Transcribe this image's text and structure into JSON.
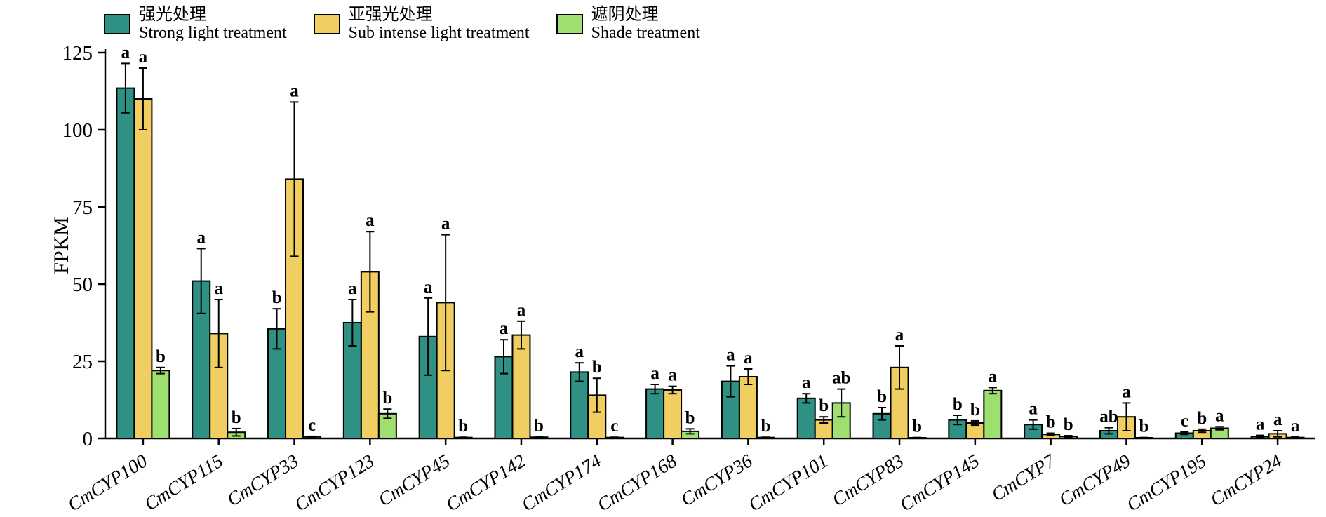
{
  "legend": {
    "items": [
      {
        "label_zh": "强光处理",
        "label_en": "Strong light treatment",
        "color": "#2F9184"
      },
      {
        "label_zh": "亚强光处理",
        "label_en": "Sub intense light treatment",
        "color": "#F0CE62"
      },
      {
        "label_zh": "遮阴处理",
        "label_en": "Shade treatment",
        "color": "#9FDF6F"
      }
    ]
  },
  "chart_data": {
    "type": "bar",
    "title": "",
    "xlabel": "",
    "ylabel": "FPKM",
    "ylim": [
      0,
      125
    ],
    "yticks": [
      0,
      25,
      50,
      75,
      100,
      125
    ],
    "grid": false,
    "legend_position": "top",
    "categories": [
      "CmCYP100",
      "CmCYP115",
      "CmCYP33",
      "CmCYP123",
      "CmCYP45",
      "CmCYP142",
      "CmCYP174",
      "CmCYP168",
      "CmCYP36",
      "CmCYP101",
      "CmCYP83",
      "CmCYP145",
      "CmCYP7",
      "CmCYP49",
      "CmCYP195",
      "CmCYP24"
    ],
    "series": [
      {
        "name_zh": "强光处理",
        "name_en": "Strong light treatment",
        "color": "#2F9184",
        "values": [
          113.5,
          51,
          35.5,
          37.5,
          33,
          26.5,
          21.5,
          16,
          18.5,
          13,
          8,
          6,
          4.5,
          2.5,
          1.7,
          0.6
        ],
        "errors": [
          8,
          10.5,
          6.5,
          7.5,
          12.5,
          5.5,
          3,
          1.5,
          5,
          1.5,
          2,
          1.5,
          1.5,
          1,
          0.4,
          0.4
        ],
        "letters": [
          "a",
          "a",
          "b",
          "a",
          "a",
          "a",
          "a",
          "a",
          "a",
          "a",
          "b",
          "b",
          "a",
          "ab",
          "c",
          "a"
        ]
      },
      {
        "name_zh": "亚强光处理",
        "name_en": "Sub intense light treatment",
        "color": "#F0CE62",
        "values": [
          110,
          34,
          84,
          54,
          44,
          33.5,
          14,
          15.7,
          20,
          6,
          23,
          5,
          1.3,
          7,
          2.5,
          1.5
        ],
        "errors": [
          10,
          11,
          25,
          13,
          22,
          4.5,
          5.5,
          1.2,
          2.5,
          1,
          7,
          0.7,
          0.4,
          4.5,
          0.5,
          1
        ],
        "letters": [
          "a",
          "a",
          "a",
          "a",
          "a",
          "a",
          "b",
          "a",
          "a",
          "b",
          "a",
          "b",
          "b",
          "a",
          "b",
          "a"
        ]
      },
      {
        "name_zh": "遮阴处理",
        "name_en": "Shade treatment",
        "color": "#9FDF6F",
        "values": [
          22,
          2,
          0.5,
          8,
          0.3,
          0.4,
          0.3,
          2.3,
          0.3,
          11.5,
          0.2,
          15.5,
          0.6,
          0.2,
          3.3,
          0.3
        ],
        "errors": [
          1,
          1.2,
          0.2,
          1.5,
          0.1,
          0.2,
          0.1,
          0.8,
          0.1,
          4.5,
          0.1,
          1,
          0.3,
          0.1,
          0.5,
          0.15
        ],
        "letters": [
          "b",
          "b",
          "c",
          "b",
          "b",
          "b",
          "c",
          "b",
          "b",
          "ab",
          "b",
          "a",
          "b",
          "b",
          "a",
          "a"
        ]
      }
    ]
  }
}
